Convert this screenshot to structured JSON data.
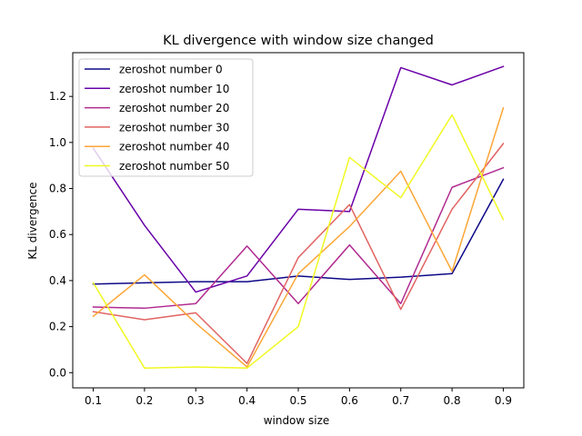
{
  "chart_data": {
    "type": "line",
    "title": "KL divergence with window size changed",
    "xlabel": "window size",
    "ylabel": "KL divergence",
    "x": [
      0.1,
      0.2,
      0.3,
      0.4,
      0.5,
      0.6,
      0.7,
      0.8,
      0.9
    ],
    "xticks": [
      "0.1",
      "0.2",
      "0.3",
      "0.4",
      "0.5",
      "0.6",
      "0.7",
      "0.8",
      "0.9"
    ],
    "yticks": [
      "0.0",
      "0.2",
      "0.4",
      "0.6",
      "0.8",
      "1.0",
      "1.2"
    ],
    "ytick_values": [
      0.0,
      0.2,
      0.4,
      0.6,
      0.8,
      1.0,
      1.2
    ],
    "xlim": [
      0.06,
      0.94
    ],
    "ylim": [
      -0.066,
      1.39
    ],
    "grid": false,
    "legend_position": "top-left",
    "series": [
      {
        "name": "zeroshot number 0",
        "color": "#0d0887",
        "values": [
          0.385,
          0.39,
          0.395,
          0.395,
          0.42,
          0.405,
          0.415,
          0.43,
          0.84
        ]
      },
      {
        "name": "zeroshot number 10",
        "color": "#6a00a8",
        "values": [
          0.975,
          0.64,
          0.35,
          0.42,
          0.71,
          0.7,
          1.325,
          1.25,
          1.33
        ]
      },
      {
        "name": "zeroshot number 20",
        "color": "#b12a90",
        "values": [
          0.285,
          0.28,
          0.3,
          0.55,
          0.3,
          0.555,
          0.3,
          0.805,
          0.89
        ]
      },
      {
        "name": "zeroshot number 30",
        "color": "#e16462",
        "values": [
          0.265,
          0.23,
          0.26,
          0.04,
          0.5,
          0.73,
          0.275,
          0.71,
          0.995
        ]
      },
      {
        "name": "zeroshot number 40",
        "color": "#fca636",
        "values": [
          0.245,
          0.425,
          0.215,
          0.025,
          0.43,
          0.635,
          0.875,
          0.44,
          1.15
        ]
      },
      {
        "name": "zeroshot number 50",
        "color": "#f0f921",
        "values": [
          0.39,
          0.02,
          0.025,
          0.02,
          0.2,
          0.935,
          0.76,
          1.12,
          0.665
        ]
      }
    ]
  }
}
